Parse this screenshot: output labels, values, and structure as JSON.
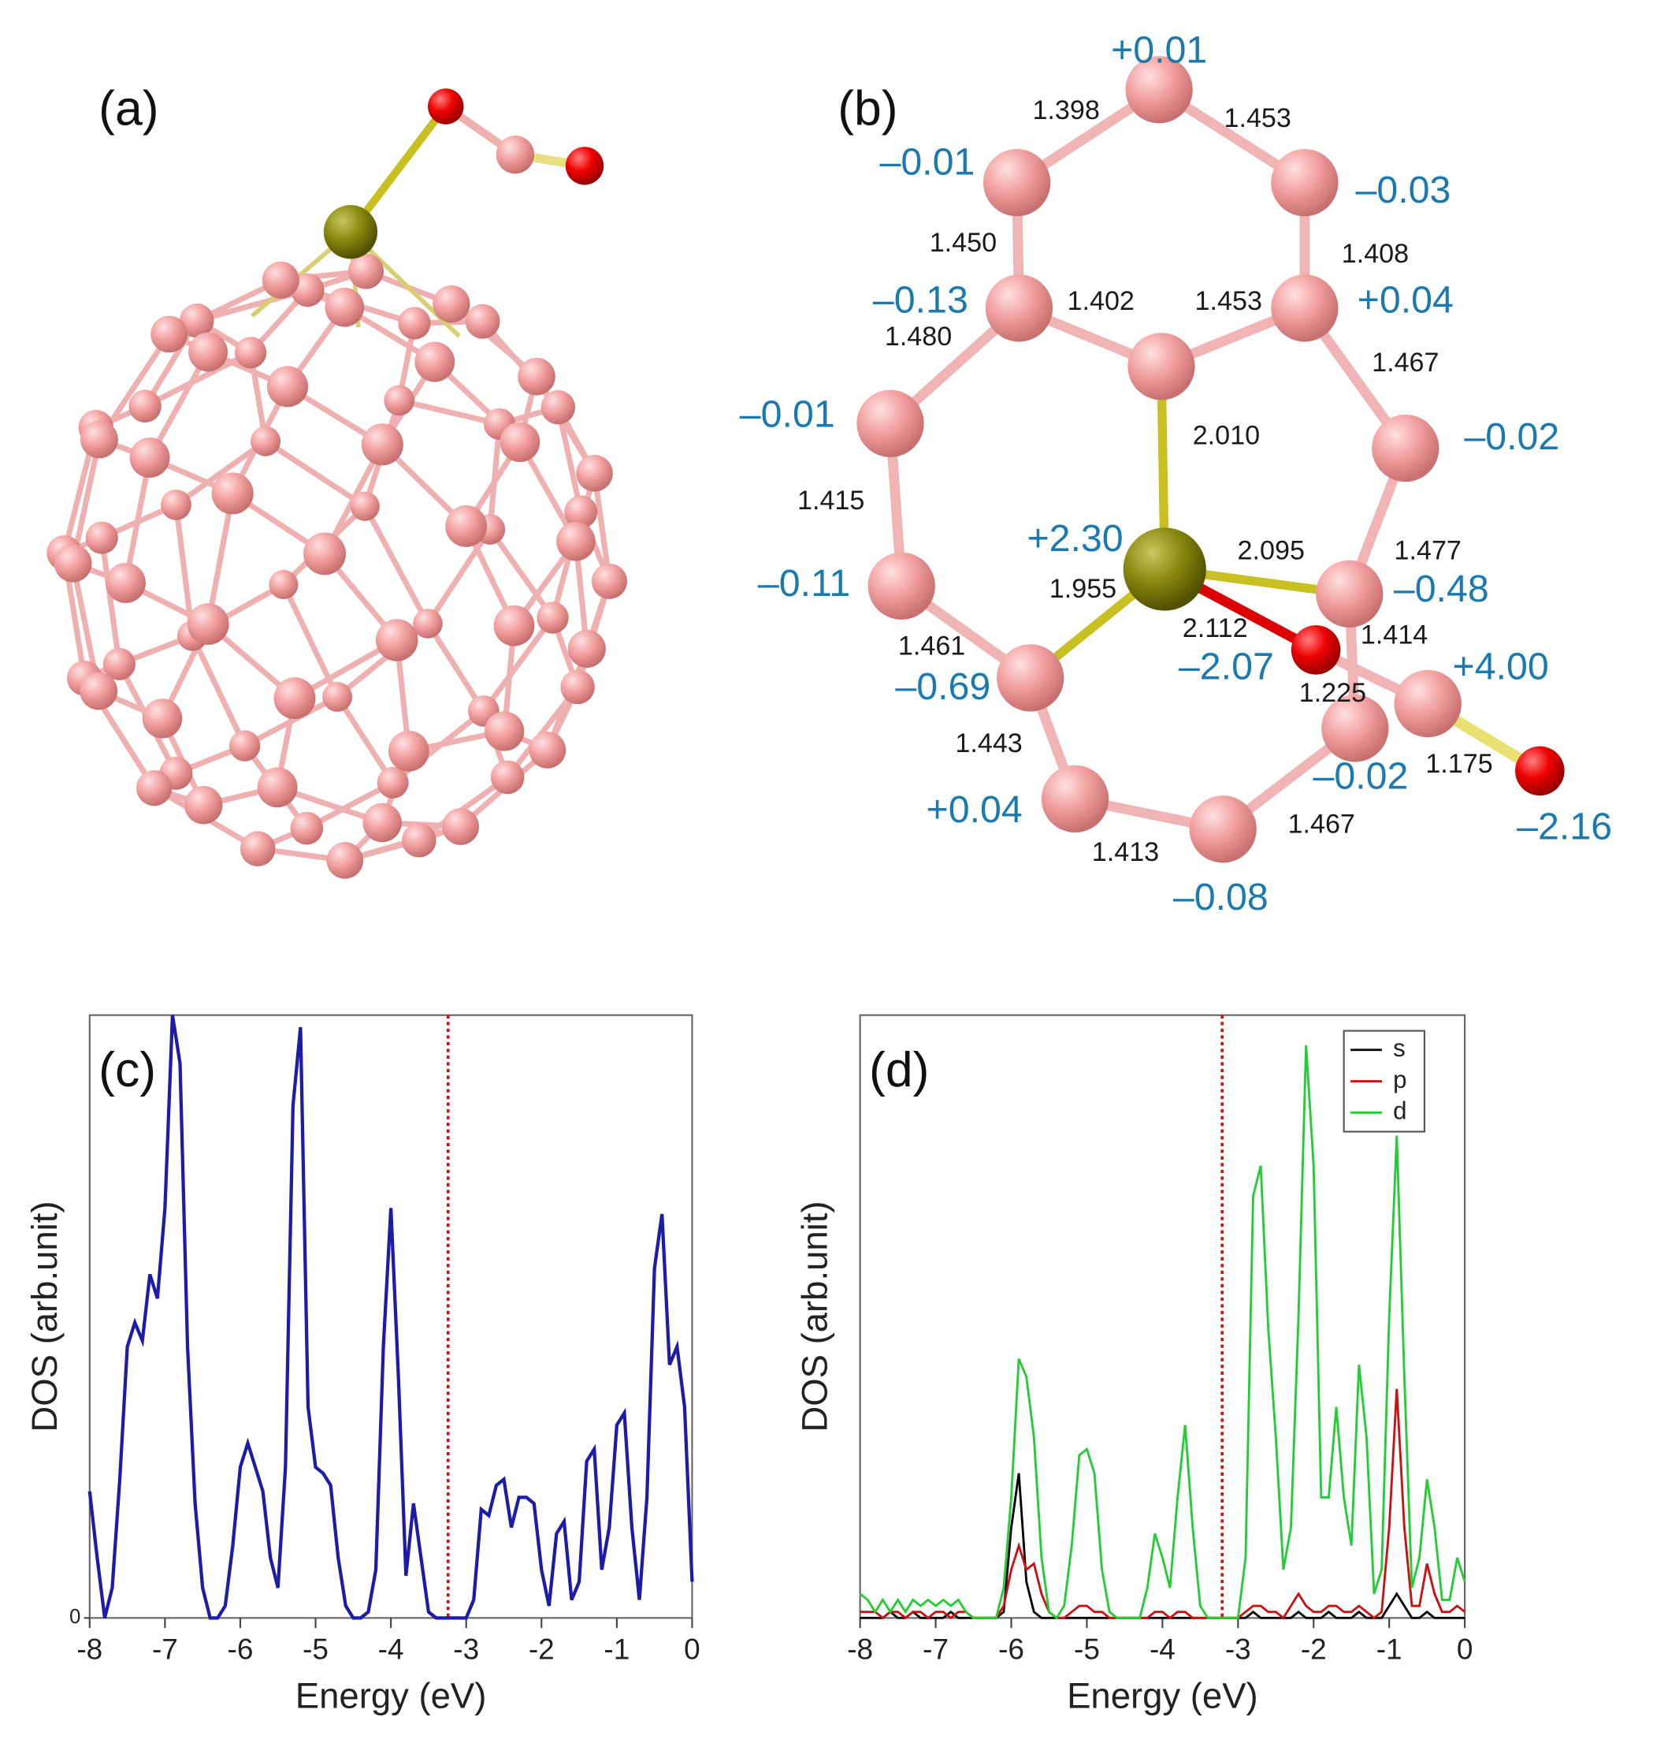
{
  "panels": {
    "a": {
      "label": "(a)"
    },
    "b": {
      "label": "(b)",
      "bond_lengths": [
        "1.398",
        "1.453",
        "1.450",
        "1.408",
        "1.402",
        "1.453",
        "1.480",
        "1.467",
        "2.010",
        "1.415",
        "2.095",
        "1.477",
        "1.955",
        "2.112",
        "1.414",
        "1.461",
        "1.225",
        "1.443",
        "1.175",
        "1.467",
        "1.413"
      ],
      "charges": [
        "+0.01",
        "–0.01",
        "–0.03",
        "–0.13",
        "+0.04",
        "–0.01",
        "–0.02",
        "+2.30",
        "–0.11",
        "–0.48",
        "–2.07",
        "+4.00",
        "–0.69",
        "–0.02",
        "+0.04",
        "–2.16",
        "–0.08"
      ]
    }
  },
  "chart_data": [
    {
      "type": "line",
      "panel_label": "(c)",
      "x_label": "Energy (eV)",
      "y_label": "DOS (arb.unit)",
      "xlim": [
        -8,
        0
      ],
      "xticks": [
        -8,
        -7,
        -6,
        -5,
        -4,
        -3,
        -2,
        -1,
        0
      ],
      "ylim": [
        0,
        1
      ],
      "yticks": [
        0
      ],
      "fermi_level": -3.24,
      "x": [
        -8,
        -7.9,
        -7.8,
        -7.7,
        -7.6,
        -7.5,
        -7.4,
        -7.3,
        -7.2,
        -7.1,
        -7,
        -6.9,
        -6.8,
        -6.7,
        -6.6,
        -6.5,
        -6.4,
        -6.3,
        -6.2,
        -6.1,
        -6,
        -5.9,
        -5.8,
        -5.7,
        -5.6,
        -5.5,
        -5.4,
        -5.3,
        -5.2,
        -5.1,
        -5,
        -4.9,
        -4.8,
        -4.7,
        -4.6,
        -4.5,
        -4.4,
        -4.3,
        -4.2,
        -4.1,
        -4,
        -3.9,
        -3.8,
        -3.7,
        -3.6,
        -3.5,
        -3.4,
        -3.3,
        -3.2,
        -3.1,
        -3,
        -2.9,
        -2.8,
        -2.7,
        -2.6,
        -2.5,
        -2.4,
        -2.3,
        -2.2,
        -2.1,
        -2,
        -1.9,
        -1.8,
        -1.7,
        -1.6,
        -1.5,
        -1.4,
        -1.3,
        -1.2,
        -1.1,
        -1,
        -0.9,
        -0.8,
        -0.7,
        -0.6,
        -0.5,
        -0.4,
        -0.3,
        -0.2,
        -0.1,
        0
      ],
      "series": [
        {
          "color": "#1c1ca8",
          "values": [
            0.21,
            0.1,
            0,
            0.05,
            0.23,
            0.45,
            0.49,
            0.46,
            0.57,
            0.53,
            0.68,
            1.0,
            0.92,
            0.45,
            0.19,
            0.05,
            0,
            0,
            0.02,
            0.12,
            0.25,
            0.29,
            0.25,
            0.21,
            0.1,
            0.05,
            0.25,
            0.85,
            0.98,
            0.35,
            0.25,
            0.24,
            0.22,
            0.1,
            0.02,
            0,
            0,
            0.01,
            0.08,
            0.45,
            0.68,
            0.4,
            0.07,
            0.19,
            0.1,
            0.01,
            0,
            0,
            0,
            0,
            0,
            0.03,
            0.18,
            0.17,
            0.22,
            0.23,
            0.15,
            0.2,
            0.2,
            0.19,
            0.08,
            0.02,
            0.14,
            0.16,
            0.03,
            0.06,
            0.26,
            0.28,
            0.08,
            0.15,
            0.32,
            0.34,
            0.15,
            0.03,
            0.2,
            0.58,
            0.67,
            0.42,
            0.45,
            0.35,
            0.06
          ]
        }
      ]
    },
    {
      "type": "line",
      "panel_label": "(d)",
      "x_label": "Energy (eV)",
      "y_label": "DOS (arb.unit)",
      "xlim": [
        -8,
        0
      ],
      "xticks": [
        -8,
        -7,
        -6,
        -5,
        -4,
        -3,
        -2,
        -1,
        0
      ],
      "ylim": [
        0,
        1
      ],
      "fermi_level": -3.21,
      "legend": "upper right",
      "x": [
        -8,
        -7.9,
        -7.8,
        -7.7,
        -7.6,
        -7.5,
        -7.4,
        -7.3,
        -7.2,
        -7.1,
        -7,
        -6.9,
        -6.8,
        -6.7,
        -6.6,
        -6.5,
        -6.4,
        -6.3,
        -6.2,
        -6.1,
        -6,
        -5.9,
        -5.8,
        -5.7,
        -5.6,
        -5.5,
        -5.4,
        -5.3,
        -5.2,
        -5.1,
        -5,
        -4.9,
        -4.8,
        -4.7,
        -4.6,
        -4.5,
        -4.4,
        -4.3,
        -4.2,
        -4.1,
        -4,
        -3.9,
        -3.8,
        -3.7,
        -3.6,
        -3.5,
        -3.4,
        -3.3,
        -3.2,
        -3.1,
        -3,
        -2.9,
        -2.8,
        -2.7,
        -2.6,
        -2.5,
        -2.4,
        -2.3,
        -2.2,
        -2.1,
        -2,
        -1.9,
        -1.8,
        -1.7,
        -1.6,
        -1.5,
        -1.4,
        -1.3,
        -1.2,
        -1.1,
        -1,
        -0.9,
        -0.8,
        -0.7,
        -0.6,
        -0.5,
        -0.4,
        -0.3,
        -0.2,
        -0.1,
        0
      ],
      "series": [
        {
          "name": "s",
          "color": "#000000",
          "values": [
            0,
            0,
            0,
            0,
            0.01,
            0,
            0,
            0.01,
            0,
            0,
            0,
            0,
            0.01,
            0,
            0,
            0,
            0,
            0,
            0,
            0.01,
            0.15,
            0.24,
            0.06,
            0.01,
            0,
            0,
            0,
            0,
            0,
            0,
            0,
            0,
            0,
            0,
            0,
            0,
            0,
            0,
            0,
            0,
            0,
            0,
            0,
            0,
            0,
            0,
            0,
            0,
            0,
            0,
            0,
            0,
            0.01,
            0,
            0,
            0,
            0,
            0,
            0.01,
            0,
            0,
            0,
            0.01,
            0,
            0,
            0,
            0.01,
            0,
            0,
            0,
            0.02,
            0.04,
            0.02,
            0,
            0,
            0.01,
            0,
            0,
            0,
            0,
            0
          ]
        },
        {
          "name": "p",
          "color": "#cc1010",
          "values": [
            0.01,
            0.01,
            0.01,
            0,
            0.01,
            0.01,
            0,
            0.01,
            0.01,
            0,
            0.01,
            0.01,
            0,
            0.01,
            0.01,
            0,
            0,
            0,
            0,
            0.02,
            0.08,
            0.12,
            0.08,
            0.09,
            0.04,
            0.01,
            0,
            0,
            0.01,
            0.02,
            0.02,
            0.01,
            0.01,
            0,
            0,
            0,
            0,
            0,
            0,
            0.01,
            0.01,
            0,
            0.01,
            0.01,
            0,
            0,
            0,
            0,
            0,
            0,
            0,
            0.01,
            0.02,
            0.02,
            0.01,
            0.01,
            0,
            0.02,
            0.04,
            0.02,
            0.01,
            0.01,
            0.02,
            0.02,
            0.01,
            0.01,
            0.02,
            0.01,
            0,
            0.01,
            0.15,
            0.38,
            0.15,
            0.02,
            0.02,
            0.09,
            0.04,
            0.01,
            0.01,
            0.02,
            0.01
          ]
        },
        {
          "name": "d",
          "color": "#22cc33",
          "values": [
            0.04,
            0.03,
            0.01,
            0.03,
            0.01,
            0.03,
            0.01,
            0.03,
            0.02,
            0.03,
            0.02,
            0.03,
            0.02,
            0.03,
            0.01,
            0,
            0,
            0,
            0,
            0.05,
            0.2,
            0.43,
            0.4,
            0.3,
            0.1,
            0.01,
            0,
            0.02,
            0.12,
            0.27,
            0.28,
            0.24,
            0.08,
            0.01,
            0,
            0,
            0,
            0,
            0.05,
            0.14,
            0.1,
            0.05,
            0.2,
            0.32,
            0.15,
            0.02,
            0,
            0,
            0,
            0,
            0,
            0.1,
            0.7,
            0.75,
            0.48,
            0.3,
            0.08,
            0.15,
            0.5,
            0.95,
            0.75,
            0.2,
            0.2,
            0.35,
            0.2,
            0.12,
            0.42,
            0.3,
            0.04,
            0.08,
            0.5,
            0.8,
            0.4,
            0.05,
            0.1,
            0.23,
            0.15,
            0.03,
            0.03,
            0.1,
            0.06
          ]
        }
      ]
    }
  ]
}
